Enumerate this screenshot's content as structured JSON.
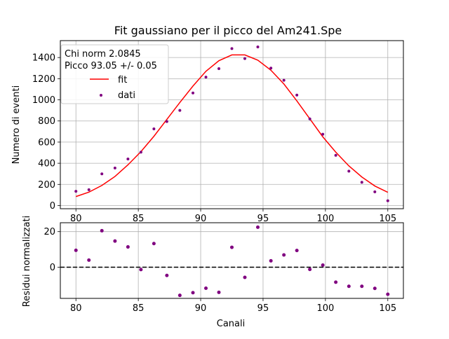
{
  "chart_data": [
    {
      "type": "scatter",
      "title": "Fit gaussiano per il picco del Am241.Spe",
      "xlabel": "",
      "ylabel": "Numero di eventi",
      "xlim": [
        78.75,
        106.25
      ],
      "ylim": [
        -30,
        1560
      ],
      "xticks": [
        80,
        85,
        90,
        95,
        100,
        105
      ],
      "xtick_labels": [
        "80",
        "85",
        "90",
        "95",
        "100",
        "105"
      ],
      "yticks": [
        0,
        200,
        400,
        600,
        800,
        1000,
        1200,
        1400
      ],
      "ytick_labels": [
        "0",
        "200",
        "400",
        "600",
        "800",
        "1000",
        "1200",
        "1400"
      ],
      "grid": true,
      "legend_position": "top-left",
      "annotation_lines": [
        "Chi norm 2.0845",
        "Picco 93.05 +/- 0.05"
      ],
      "series": [
        {
          "name": "fit",
          "kind": "line",
          "color": "#ff0000",
          "x": [
            80.0,
            81.04,
            82.08,
            83.13,
            84.17,
            85.21,
            86.25,
            87.29,
            88.33,
            89.38,
            90.42,
            91.46,
            92.5,
            93.54,
            94.58,
            95.63,
            96.67,
            97.71,
            98.75,
            99.79,
            100.83,
            101.88,
            102.92,
            103.96,
            105.0
          ],
          "values": [
            85,
            127,
            190,
            275,
            385,
            510,
            655,
            815,
            975,
            1130,
            1270,
            1370,
            1425,
            1425,
            1375,
            1280,
            1150,
            990,
            820,
            650,
            505,
            375,
            270,
            185,
            125
          ]
        },
        {
          "name": "dati",
          "kind": "scatter",
          "color": "#800080",
          "x": [
            80.0,
            81.04,
            82.08,
            83.13,
            84.17,
            85.21,
            86.25,
            87.29,
            88.33,
            89.38,
            90.42,
            91.46,
            92.5,
            93.54,
            94.58,
            95.63,
            96.67,
            97.71,
            98.75,
            99.79,
            100.83,
            101.88,
            102.92,
            103.96,
            105.0
          ],
          "values": [
            135,
            150,
            300,
            355,
            440,
            505,
            725,
            795,
            900,
            1065,
            1215,
            1295,
            1485,
            1390,
            1500,
            1300,
            1185,
            1045,
            820,
            675,
            475,
            325,
            220,
            130,
            45
          ]
        }
      ]
    },
    {
      "type": "scatter",
      "title": "",
      "xlabel": "Canali",
      "ylabel": "Residui normalizzati",
      "xlim": [
        78.75,
        106.25
      ],
      "ylim": [
        -17.5,
        25
      ],
      "xticks": [
        80,
        85,
        90,
        95,
        100,
        105
      ],
      "xtick_labels": [
        "80",
        "85",
        "90",
        "95",
        "100",
        "105"
      ],
      "yticks": [
        0,
        20
      ],
      "ytick_labels": [
        "0",
        "20"
      ],
      "grid": true,
      "reference_line": {
        "y": 0,
        "style": "dashed",
        "color": "#000000"
      },
      "series": [
        {
          "name": "",
          "kind": "scatter",
          "color": "#800080",
          "x": [
            80.0,
            81.04,
            82.08,
            83.13,
            84.17,
            85.21,
            86.25,
            87.29,
            88.33,
            89.38,
            90.42,
            91.46,
            92.5,
            93.54,
            94.58,
            95.63,
            96.67,
            97.71,
            98.75,
            99.79,
            100.83,
            101.88,
            102.92,
            103.96,
            105.0
          ],
          "values": [
            9.5,
            4,
            20.5,
            14.7,
            11.4,
            -1.3,
            13.3,
            -4.6,
            -15.8,
            -14.3,
            -11.8,
            -14.1,
            11.2,
            -5.7,
            22.5,
            3.6,
            6.9,
            9.4,
            -1.2,
            1.2,
            -8.4,
            -10.7,
            -10.7,
            -11.9,
            -15.2
          ]
        }
      ]
    }
  ]
}
